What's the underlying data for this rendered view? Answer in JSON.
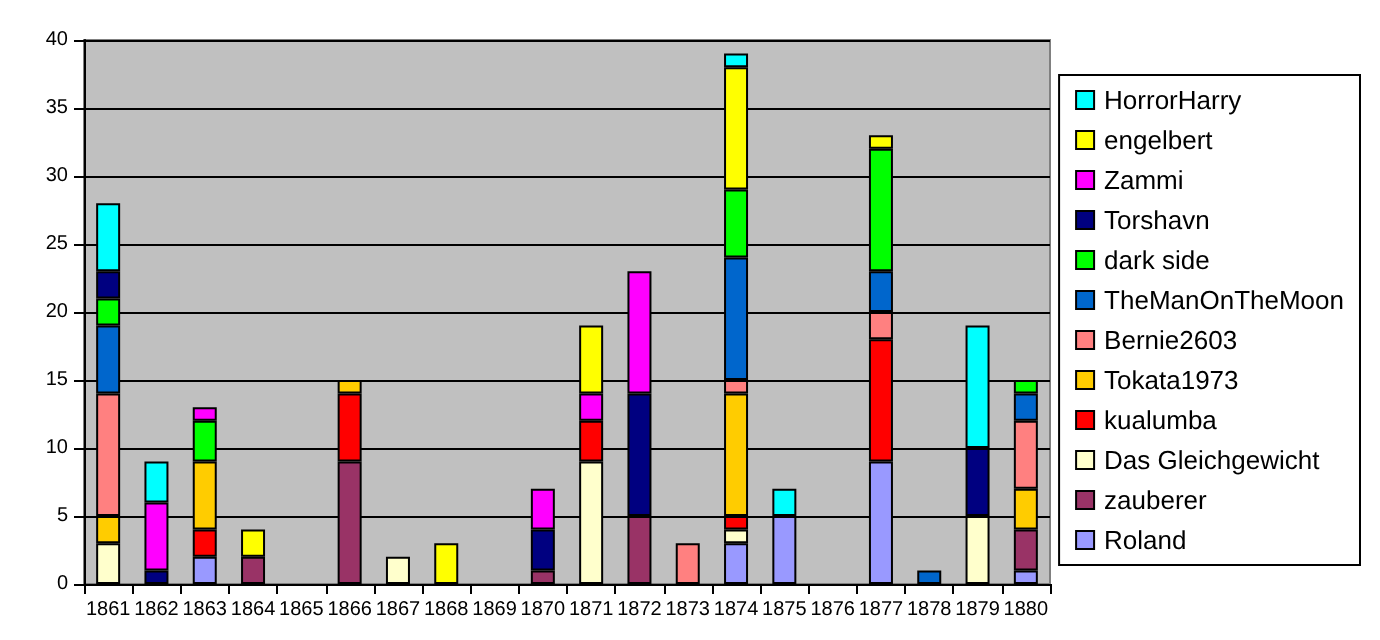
{
  "chart_data": {
    "type": "bar",
    "stacked": true,
    "categories": [
      "1861",
      "1862",
      "1863",
      "1864",
      "1865",
      "1866",
      "1867",
      "1868",
      "1869",
      "1870",
      "1871",
      "1872",
      "1873",
      "1874",
      "1875",
      "1876",
      "1877",
      "1878",
      "1879",
      "1880"
    ],
    "series": [
      {
        "name": "Roland",
        "color": "#9999ff",
        "values": [
          null,
          null,
          2,
          null,
          null,
          null,
          null,
          null,
          null,
          null,
          null,
          null,
          null,
          3,
          5,
          null,
          9,
          null,
          null,
          1
        ]
      },
      {
        "name": "zauberer",
        "color": "#993366",
        "values": [
          null,
          null,
          null,
          2,
          null,
          9,
          null,
          null,
          null,
          1,
          null,
          5,
          null,
          null,
          null,
          null,
          null,
          null,
          null,
          3
        ]
      },
      {
        "name": "Das Gleichgewicht",
        "color": "#ffffcc",
        "values": [
          3,
          null,
          null,
          null,
          null,
          null,
          2,
          null,
          null,
          null,
          9,
          null,
          null,
          1,
          null,
          null,
          null,
          null,
          5,
          null
        ]
      },
      {
        "name": "kualumba",
        "color": "#ff0000",
        "values": [
          null,
          null,
          2,
          null,
          null,
          5,
          null,
          null,
          null,
          null,
          3,
          null,
          null,
          1,
          null,
          null,
          9,
          null,
          null,
          null
        ]
      },
      {
        "name": "Tokata1973",
        "color": "#ffcc00",
        "values": [
          2,
          null,
          5,
          null,
          null,
          1,
          null,
          null,
          null,
          null,
          null,
          null,
          null,
          9,
          null,
          null,
          null,
          null,
          null,
          3
        ]
      },
      {
        "name": "Bernie2603",
        "color": "#ff8080",
        "values": [
          9,
          null,
          null,
          null,
          null,
          null,
          null,
          null,
          null,
          null,
          null,
          null,
          3,
          1,
          null,
          null,
          2,
          null,
          null,
          5
        ]
      },
      {
        "name": "TheManOnTheMoon",
        "color": "#0066cc",
        "values": [
          5,
          null,
          null,
          null,
          null,
          null,
          null,
          null,
          null,
          null,
          null,
          null,
          null,
          9,
          null,
          null,
          3,
          1,
          null,
          2
        ]
      },
      {
        "name": "dark side",
        "color": "#00ff00",
        "values": [
          2,
          null,
          3,
          null,
          null,
          null,
          null,
          null,
          null,
          null,
          null,
          null,
          null,
          5,
          null,
          null,
          9,
          null,
          null,
          1
        ]
      },
      {
        "name": "Torshavn",
        "color": "#000080",
        "values": [
          2,
          1,
          null,
          null,
          null,
          null,
          null,
          null,
          null,
          3,
          null,
          9,
          null,
          null,
          null,
          null,
          null,
          null,
          5,
          null
        ]
      },
      {
        "name": "Zammi",
        "color": "#ff00ff",
        "values": [
          null,
          5,
          1,
          null,
          null,
          null,
          null,
          null,
          null,
          3,
          2,
          9,
          null,
          null,
          null,
          null,
          null,
          null,
          null,
          null
        ]
      },
      {
        "name": "engelbert",
        "color": "#ffff00",
        "values": [
          null,
          null,
          null,
          2,
          null,
          null,
          null,
          3,
          null,
          null,
          5,
          null,
          null,
          9,
          null,
          null,
          1,
          null,
          null,
          null
        ]
      },
      {
        "name": "HorrorHarry",
        "color": "#00ffff",
        "values": [
          5,
          3,
          null,
          null,
          null,
          null,
          null,
          null,
          null,
          null,
          null,
          null,
          null,
          1,
          2,
          null,
          null,
          null,
          9,
          null
        ]
      }
    ],
    "ylim": [
      0,
      40
    ],
    "yticks": [
      0,
      5,
      10,
      15,
      20,
      25,
      30,
      35,
      40
    ],
    "grid": "y",
    "legend": "right"
  }
}
